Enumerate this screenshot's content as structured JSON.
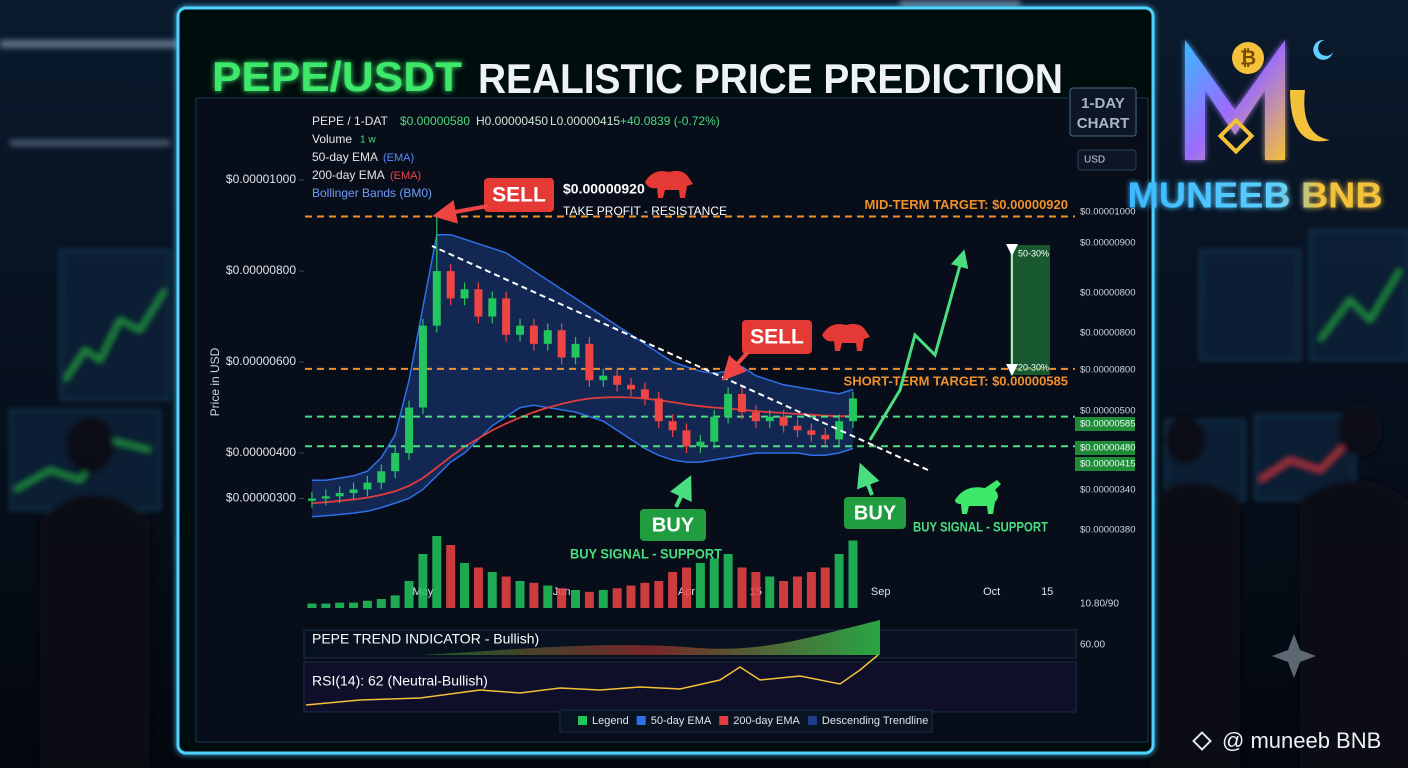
{
  "title_pair": "PEPE/USDT",
  "title_rest": "REALISTIC PRICE PREDICTION",
  "badge": [
    "1-DAY",
    "CHART"
  ],
  "logo": "MUNEEB BNB",
  "watermark": "@ muneeb BNB",
  "currency": "USD",
  "header": {
    "symbol": "PEPE / 1-DAT",
    "price": "$0.00000580",
    "high": "H0.00000450",
    "low": "L0.00000415",
    "change": "+40.0839 (-0.72%)",
    "volume": "Volume",
    "volume_period": "1 w",
    "ema50": "50-day EMA",
    "ema50_tag": "(EMA)",
    "ema200": "200-day EMA",
    "ema200_tag": "(EMA)",
    "bollinger": "Bollinger Bands (BM0)"
  },
  "price_scale": [
    "$0.00001000",
    "$0.00000900",
    "$0.00000800",
    "$0.00000800",
    "$0.00000800",
    "$0.00000500",
    "$0.00000585",
    "$0.00000480",
    "$0.00000415",
    "$0.00000340",
    "$0.00000380"
  ],
  "annotations": {
    "sell_1": "SELL",
    "sell_1_price": "$0.00000920",
    "sell_1_note": "TAKE PROFIT - RESISTANCE",
    "sell_2": "SELL",
    "buy_1": "BUY",
    "buy_1_note": "BUY SIGNAL - SUPPORT",
    "buy_2": "BUY",
    "buy_2_note": "BUY SIGNAL - SUPPORT",
    "range_top": "50-30%",
    "range_bottom": "20-30%"
  },
  "indicators": {
    "trend": "PEPE TREND INDICATOR - Bullish)",
    "rsi": "RSI(14): 62 (Neutral-Bullish)",
    "scale_top": "10.80/90",
    "scale_mid": "60.00"
  },
  "legend": [
    {
      "name": "Legend",
      "color": "#22c55e"
    },
    {
      "name": "50-day EMA",
      "color": "#2f6fe8"
    },
    {
      "name": "200-day EMA",
      "color": "#e23b3b"
    },
    {
      "name": "Descending Trendline",
      "color": "#1d3d8f"
    }
  ],
  "chart_data": {
    "type": "candlestick",
    "ylabel": "Price in USD",
    "up_color": "#22c55e",
    "down_color": "#ef4444",
    "ylim": [
      7.7e-07,
      1.165e-05
    ],
    "yticks": [
      {
        "value": 1e-05,
        "label": "$0.00001000"
      },
      {
        "value": 8e-06,
        "label": "$0.00000800"
      },
      {
        "value": 6e-06,
        "label": "$0.00000600"
      },
      {
        "value": 4e-06,
        "label": "$0.00000400"
      },
      {
        "value": 3e-06,
        "label": "$0.00000300"
      }
    ],
    "grid": false,
    "categories": [
      null,
      null,
      null,
      null,
      null,
      null,
      null,
      null,
      "May",
      null,
      null,
      null,
      null,
      null,
      null,
      null,
      null,
      null,
      "Jun",
      null,
      null,
      null,
      null,
      null,
      null,
      null,
      null,
      "Apr",
      null,
      null,
      null,
      null,
      "15",
      null,
      null,
      null,
      null,
      null,
      null,
      null,
      null,
      "Sep",
      null,
      null,
      null,
      null,
      null,
      null,
      null,
      "Oct",
      null,
      null,
      null,
      "15",
      null
    ],
    "open": [
      2.95e-06,
      3e-06,
      3.05e-06,
      3.12e-06,
      3.2e-06,
      3.35e-06,
      3.6e-06,
      4e-06,
      5e-06,
      6.8e-06,
      8e-06,
      7.4e-06,
      7.6e-06,
      7e-06,
      7.4e-06,
      6.6e-06,
      6.8e-06,
      6.4e-06,
      6.7e-06,
      6.1e-06,
      6.4e-06,
      5.6e-06,
      5.7e-06,
      5.5e-06,
      5.4e-06,
      5.2e-06,
      4.7e-06,
      4.5e-06,
      4.15e-06,
      4.25e-06,
      4.8e-06,
      5.3e-06,
      4.9e-06,
      4.7e-06,
      4.8e-06,
      4.6e-06,
      4.5e-06,
      4.4e-06,
      4.3e-06,
      4.7e-06,
      null,
      null,
      null,
      null,
      null,
      null,
      null,
      null,
      null,
      null,
      null,
      null,
      null,
      null,
      null
    ],
    "high": [
      3.15e-06,
      3.2e-06,
      3.27e-06,
      3.35e-06,
      3.5e-06,
      3.75e-06,
      4.15e-06,
      5.15e-06,
      6.95e-06,
      9.2e-06,
      8.15e-06,
      7.75e-06,
      7.75e-06,
      7.55e-06,
      7.55e-06,
      6.95e-06,
      6.95e-06,
      6.85e-06,
      6.85e-06,
      6.55e-06,
      6.55e-06,
      5.85e-06,
      5.85e-06,
      5.65e-06,
      5.55e-06,
      5.35e-06,
      4.85e-06,
      4.65e-06,
      4.4e-06,
      4.95e-06,
      5.45e-06,
      5.45e-06,
      5.05e-06,
      4.95e-06,
      4.95e-06,
      4.75e-06,
      4.65e-06,
      4.55e-06,
      4.85e-06,
      5.35e-06,
      null,
      null,
      null,
      null,
      null,
      null,
      null,
      null,
      null,
      null,
      null,
      null,
      null,
      null,
      null
    ],
    "low": [
      2.8e-06,
      2.85e-06,
      2.9e-06,
      2.97e-06,
      3.05e-06,
      3.2e-06,
      3.45e-06,
      3.85e-06,
      4.85e-06,
      6.65e-06,
      7.25e-06,
      7.25e-06,
      6.85e-06,
      6.85e-06,
      6.45e-06,
      6.45e-06,
      6.25e-06,
      6.25e-06,
      5.95e-06,
      5.95e-06,
      5.45e-06,
      5.45e-06,
      5.35e-06,
      5.25e-06,
      5.05e-06,
      4.55e-06,
      4.35e-06,
      4e-06,
      4e-06,
      4.1e-06,
      4.65e-06,
      4.75e-06,
      4.55e-06,
      4.55e-06,
      4.45e-06,
      4.35e-06,
      4.25e-06,
      4.15e-06,
      4.15e-06,
      4.55e-06,
      null,
      null,
      null,
      null,
      null,
      null,
      null,
      null,
      null,
      null,
      null,
      null,
      null,
      null,
      null
    ],
    "close": [
      3e-06,
      3.05e-06,
      3.12e-06,
      3.2e-06,
      3.35e-06,
      3.6e-06,
      4e-06,
      5e-06,
      6.8e-06,
      8e-06,
      7.4e-06,
      7.6e-06,
      7e-06,
      7.4e-06,
      6.6e-06,
      6.8e-06,
      6.4e-06,
      6.7e-06,
      6.1e-06,
      6.4e-06,
      5.6e-06,
      5.7e-06,
      5.5e-06,
      5.4e-06,
      5.2e-06,
      4.7e-06,
      4.5e-06,
      4.15e-06,
      4.25e-06,
      4.8e-06,
      5.3e-06,
      4.9e-06,
      4.7e-06,
      4.8e-06,
      4.6e-06,
      4.5e-06,
      4.4e-06,
      4.3e-06,
      4.7e-06,
      5.2e-06,
      null,
      null,
      null,
      null,
      null,
      null,
      null,
      null,
      null,
      null,
      null,
      null,
      null,
      null,
      null
    ],
    "volume": [
      5,
      5,
      6,
      6,
      8,
      10,
      14,
      30,
      60,
      80,
      70,
      50,
      45,
      40,
      35,
      30,
      28,
      25,
      22,
      20,
      18,
      20,
      22,
      25,
      28,
      30,
      40,
      45,
      50,
      55,
      60,
      45,
      40,
      35,
      30,
      35,
      40,
      45,
      60,
      75,
      null,
      null,
      null,
      null,
      null,
      null,
      null,
      null,
      null,
      null,
      null,
      null,
      null,
      null,
      null
    ],
    "ema200": [
      2.9e-06,
      2.92e-06,
      2.95e-06,
      2.98e-06,
      3.02e-06,
      3.08e-06,
      3.16e-06,
      3.28e-06,
      3.45e-06,
      3.68e-06,
      3.92e-06,
      4.14e-06,
      4.32e-06,
      4.5e-06,
      4.65e-06,
      4.78e-06,
      4.9e-06,
      5e-06,
      5.08e-06,
      5.15e-06,
      5.2e-06,
      5.22e-06,
      5.23e-06,
      5.22e-06,
      5.2e-06,
      5.16e-06,
      5.12e-06,
      5.07e-06,
      5.03e-06,
      5e-06,
      4.98e-06,
      4.95e-06,
      4.92e-06,
      4.9e-06,
      4.88e-06,
      4.86e-06,
      4.84e-06,
      4.82e-06,
      4.81e-06,
      4.81e-06,
      null,
      null,
      null,
      null,
      null,
      null,
      null,
      null,
      null,
      null,
      null,
      null,
      null,
      null,
      null
    ],
    "bb_upper": [
      3.4e-06,
      3.4e-06,
      3.45e-06,
      3.5e-06,
      3.6e-06,
      3.9e-06,
      4.4e-06,
      5.6e-06,
      7.2e-06,
      8.8e-06,
      8.8e-06,
      8.7e-06,
      8.6e-06,
      8.5e-06,
      8.4e-06,
      8.2e-06,
      8e-06,
      7.8e-06,
      7.6e-06,
      7.4e-06,
      7.2e-06,
      7e-06,
      6.8e-06,
      6.6e-06,
      6.4e-06,
      6.2e-06,
      6e-06,
      5.9e-06,
      5.8e-06,
      5.75e-06,
      5.8e-06,
      5.9e-06,
      5.7e-06,
      5.6e-06,
      5.5e-06,
      5.45e-06,
      5.4e-06,
      5.35e-06,
      5.3e-06,
      5.4e-06,
      null,
      null,
      null,
      null,
      null,
      null,
      null,
      null,
      null,
      null,
      null,
      null,
      null,
      null,
      null
    ],
    "bb_lower": [
      2.6e-06,
      2.62e-06,
      2.65e-06,
      2.68e-06,
      2.72e-06,
      2.8e-06,
      2.9e-06,
      3e-06,
      3.2e-06,
      3.5e-06,
      3.8e-06,
      4e-06,
      4.3e-06,
      4.6e-06,
      4.8e-06,
      5e-06,
      5.05e-06,
      5e-06,
      4.95e-06,
      4.9e-06,
      4.8e-06,
      4.7e-06,
      4.5e-06,
      4.3e-06,
      4.1e-06,
      3.95e-06,
      3.85e-06,
      3.8e-06,
      3.8e-06,
      3.85e-06,
      3.9e-06,
      3.95e-06,
      4e-06,
      4e-06,
      4e-06,
      4e-06,
      3.95e-06,
      3.95e-06,
      4e-06,
      4.1e-06,
      null,
      null,
      null,
      null,
      null,
      null,
      null,
      null,
      null,
      null,
      null,
      null,
      null,
      null,
      null
    ],
    "ema_color": "#e23b3b",
    "band_color": "#2f6fe8",
    "levels": [
      {
        "value": 9.2e-06,
        "color": "#f0902a",
        "label": "MID-TERM TARGET: $0.00000920"
      },
      {
        "value": 5.85e-06,
        "color": "#f0902a",
        "label": "SHORT-TERM TARGET: $0.00000585"
      },
      {
        "value": 4.8e-06,
        "color": "#4ade80"
      },
      {
        "value": 4.15e-06,
        "color": "#4ade80"
      }
    ]
  }
}
